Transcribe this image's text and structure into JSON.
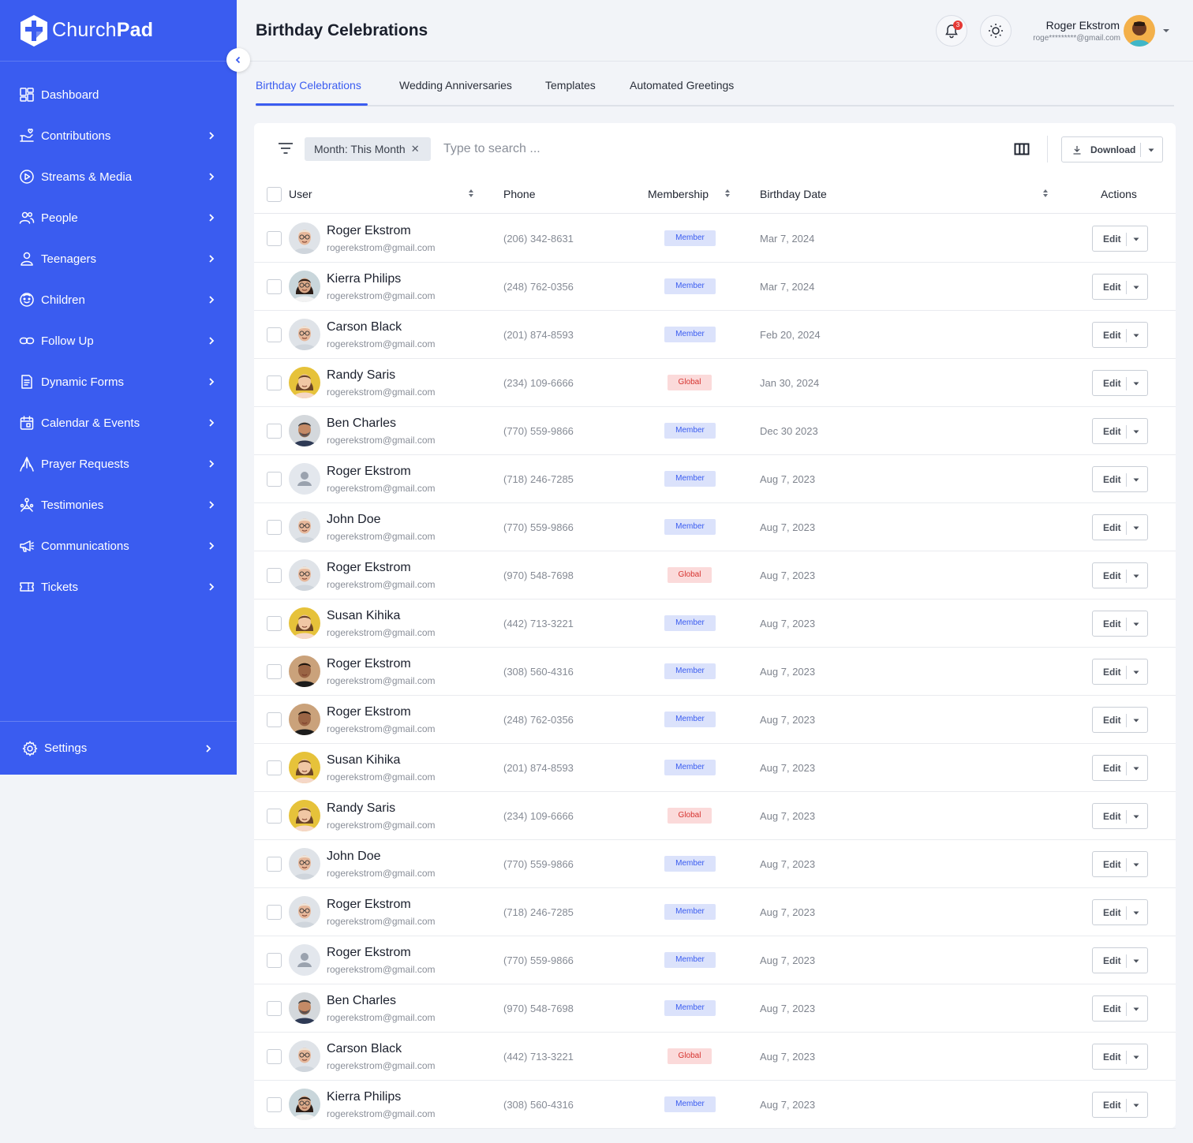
{
  "brand": {
    "name_light": "Church",
    "name_bold": "Pad"
  },
  "sidebar": {
    "items": [
      {
        "label": "Dashboard",
        "icon": "dashboard-icon",
        "chevron": false
      },
      {
        "label": "Contributions",
        "icon": "contributions-icon",
        "chevron": true
      },
      {
        "label": "Streams & Media",
        "icon": "play-circle-icon",
        "chevron": true
      },
      {
        "label": "People",
        "icon": "people-icon",
        "chevron": true
      },
      {
        "label": "Teenagers",
        "icon": "person-icon",
        "chevron": true
      },
      {
        "label": "Children",
        "icon": "child-face-icon",
        "chevron": true
      },
      {
        "label": "Follow Up",
        "icon": "link-icon",
        "chevron": true
      },
      {
        "label": "Dynamic Forms",
        "icon": "form-icon",
        "chevron": true
      },
      {
        "label": "Calendar & Events",
        "icon": "calendar-icon",
        "chevron": true
      },
      {
        "label": "Prayer Requests",
        "icon": "praying-hands-icon",
        "chevron": true
      },
      {
        "label": "Testimonies",
        "icon": "testimonies-icon",
        "chevron": true
      },
      {
        "label": "Communications",
        "icon": "megaphone-icon",
        "chevron": true
      },
      {
        "label": "Tickets",
        "icon": "ticket-icon",
        "chevron": true
      }
    ],
    "settings_label": "Settings"
  },
  "header": {
    "title": "Birthday Celebrations",
    "notification_count": "3",
    "user_name": "Roger Ekstrom",
    "user_email": "roge*********@gmail.com"
  },
  "tabs": [
    {
      "label": "Birthday Celebrations",
      "active": true
    },
    {
      "label": "Wedding Anniversaries",
      "active": false
    },
    {
      "label": "Templates",
      "active": false
    },
    {
      "label": "Automated Greetings",
      "active": false
    }
  ],
  "toolbar": {
    "filter_chip": "Month: This Month",
    "search_placeholder": "Type to search ...",
    "download_label": "Download"
  },
  "table": {
    "headers": {
      "user": "User",
      "phone": "Phone",
      "membership": "Membership",
      "birthday": "Birthday Date",
      "actions": "Actions"
    },
    "edit_label": "Edit",
    "rows": [
      {
        "name": "Roger Ekstrom",
        "email": "rogerekstrom@gmail.com",
        "phone": "(206) 342-8631",
        "membership": "Member",
        "date": "Mar 7, 2024",
        "avatar": "bald-glasses"
      },
      {
        "name": "Kierra Philips",
        "email": "rogerekstrom@gmail.com",
        "phone": "(248) 762-0356",
        "membership": "Member",
        "date": "Mar 7, 2024",
        "avatar": "woman-dark"
      },
      {
        "name": "Carson Black",
        "email": "rogerekstrom@gmail.com",
        "phone": "(201) 874-8593",
        "membership": "Member",
        "date": "Feb 20, 2024",
        "avatar": "bald-glasses"
      },
      {
        "name": "Randy Saris",
        "email": "rogerekstrom@gmail.com",
        "phone": "(234) 109-6666",
        "membership": "Global",
        "date": "Jan 30, 2024",
        "avatar": "woman-yellow"
      },
      {
        "name": "Ben Charles",
        "email": "rogerekstrom@gmail.com",
        "phone": "(770) 559-9866",
        "membership": "Member",
        "date": "Dec 30 2023",
        "avatar": "man-older"
      },
      {
        "name": "Roger Ekstrom",
        "email": "rogerekstrom@gmail.com",
        "phone": "(718) 246-7285",
        "membership": "Member",
        "date": "Aug 7, 2023",
        "avatar": "placeholder"
      },
      {
        "name": "John Doe",
        "email": "rogerekstrom@gmail.com",
        "phone": "(770) 559-9866",
        "membership": "Member",
        "date": "Aug 7, 2023",
        "avatar": "bald-glasses"
      },
      {
        "name": "Roger Ekstrom",
        "email": "rogerekstrom@gmail.com",
        "phone": "(970) 548-7698",
        "membership": "Global",
        "date": "Aug 7, 2023",
        "avatar": "bald-glasses"
      },
      {
        "name": "Susan Kihika",
        "email": "rogerekstrom@gmail.com",
        "phone": "(442) 713-3221",
        "membership": "Member",
        "date": "Aug 7, 2023",
        "avatar": "woman-yellow"
      },
      {
        "name": "Roger Ekstrom",
        "email": "rogerekstrom@gmail.com",
        "phone": "(308) 560-4316",
        "membership": "Member",
        "date": "Aug 7, 2023",
        "avatar": "man-brown"
      },
      {
        "name": "Roger Ekstrom",
        "email": "rogerekstrom@gmail.com",
        "phone": "(248) 762-0356",
        "membership": "Member",
        "date": "Aug 7, 2023",
        "avatar": "man-brown"
      },
      {
        "name": "Susan Kihika",
        "email": "rogerekstrom@gmail.com",
        "phone": "(201) 874-8593",
        "membership": "Member",
        "date": "Aug 7, 2023",
        "avatar": "woman-yellow"
      },
      {
        "name": "Randy Saris",
        "email": "rogerekstrom@gmail.com",
        "phone": "(234) 109-6666",
        "membership": "Global",
        "date": "Aug 7, 2023",
        "avatar": "woman-yellow"
      },
      {
        "name": "John Doe",
        "email": "rogerekstrom@gmail.com",
        "phone": "(770) 559-9866",
        "membership": "Member",
        "date": "Aug 7, 2023",
        "avatar": "bald-glasses"
      },
      {
        "name": "Roger Ekstrom",
        "email": "rogerekstrom@gmail.com",
        "phone": "(718) 246-7285",
        "membership": "Member",
        "date": "Aug 7, 2023",
        "avatar": "bald-glasses"
      },
      {
        "name": "Roger Ekstrom",
        "email": "rogerekstrom@gmail.com",
        "phone": "(770) 559-9866",
        "membership": "Member",
        "date": "Aug 7, 2023",
        "avatar": "placeholder"
      },
      {
        "name": "Ben Charles",
        "email": "rogerekstrom@gmail.com",
        "phone": "(970) 548-7698",
        "membership": "Member",
        "date": "Aug 7, 2023",
        "avatar": "man-older"
      },
      {
        "name": "Carson Black",
        "email": "rogerekstrom@gmail.com",
        "phone": "(442) 713-3221",
        "membership": "Global",
        "date": "Aug 7, 2023",
        "avatar": "bald-glasses"
      },
      {
        "name": "Kierra Philips",
        "email": "rogerekstrom@gmail.com",
        "phone": "(308) 560-4316",
        "membership": "Member",
        "date": "Aug 7, 2023",
        "avatar": "woman-dark"
      }
    ]
  },
  "colors": {
    "brand_blue": "#3a5cf0",
    "member_bg": "#dbe2fb",
    "global_bg": "#fbdada",
    "global_text": "#d6332f"
  }
}
